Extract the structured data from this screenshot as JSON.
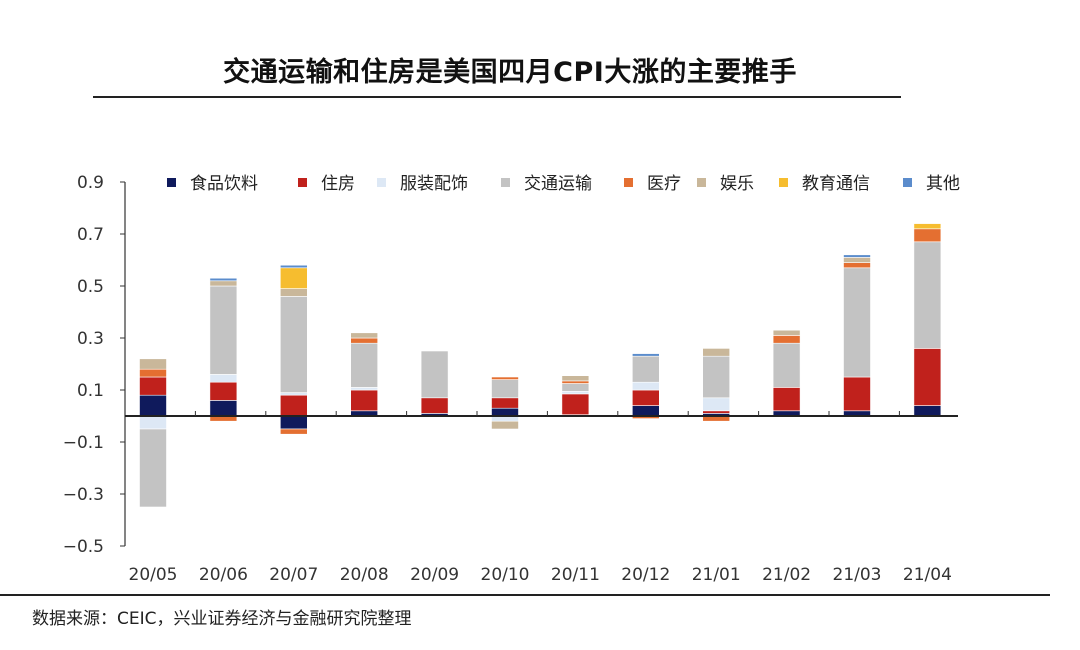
{
  "title": "交通运输和住房是美国四月CPI大涨的主要推手",
  "source": "数据来源：CEIC，兴业证券经济与金融研究院整理",
  "chart_data": {
    "type": "bar",
    "stacked": true,
    "categories": [
      "20/05",
      "20/06",
      "20/07",
      "20/08",
      "20/09",
      "20/10",
      "20/11",
      "20/12",
      "21/01",
      "21/02",
      "21/03",
      "21/04"
    ],
    "y_ticks": [
      0.9,
      0.7,
      0.5,
      0.3,
      0.1,
      -0.1,
      -0.3,
      -0.5
    ],
    "y_tick_labels": [
      "0.9",
      "0.7",
      "0.5",
      "0.3",
      "0.1",
      "−0.1",
      "−0.3",
      "−0.5"
    ],
    "ylim": [
      -0.5,
      0.9
    ],
    "legend_position": "top",
    "series": [
      {
        "name": "食品饮料",
        "color": "#0f1a5c",
        "values": [
          0.08,
          0.06,
          -0.05,
          0.02,
          0.01,
          0.03,
          0.005,
          0.04,
          0.01,
          0.02,
          0.02,
          0.04
        ]
      },
      {
        "name": "住房",
        "color": "#c0211c",
        "values": [
          0.07,
          0.07,
          0.08,
          0.08,
          0.06,
          0.04,
          0.08,
          0.06,
          0.01,
          0.09,
          0.13,
          0.22
        ]
      },
      {
        "name": "服装配饰",
        "color": "#dde8f5",
        "values": [
          -0.05,
          0.03,
          0.01,
          0.01,
          0.0,
          -0.02,
          0.01,
          0.03,
          0.05,
          0.0,
          0.0,
          0.0
        ]
      },
      {
        "name": "交通运输",
        "color": "#c3c3c3",
        "values": [
          -0.3,
          0.34,
          0.37,
          0.17,
          0.18,
          0.07,
          0.03,
          0.1,
          0.16,
          0.17,
          0.42,
          0.41
        ]
      },
      {
        "name": "医疗",
        "color": "#e46f31",
        "values": [
          0.03,
          -0.02,
          -0.02,
          0.02,
          0.0,
          0.01,
          0.01,
          -0.01,
          -0.02,
          0.03,
          0.02,
          0.05
        ]
      },
      {
        "name": "娱乐",
        "color": "#c9b79a",
        "values": [
          0.04,
          0.02,
          0.03,
          0.02,
          0.0,
          -0.03,
          0.02,
          0.0,
          0.03,
          0.02,
          0.02,
          0.0
        ]
      },
      {
        "name": "教育通信",
        "color": "#f6bd2f",
        "values": [
          0.0,
          0.0,
          0.08,
          0.0,
          0.0,
          0.0,
          0.0,
          0.0,
          0.0,
          0.0,
          0.0,
          0.02
        ]
      },
      {
        "name": "其他",
        "color": "#5b8ccc",
        "values": [
          0.0,
          0.01,
          0.01,
          0.0,
          0.0,
          0.0,
          0.0,
          0.01,
          0.0,
          0.0,
          0.01,
          0.0
        ]
      }
    ]
  }
}
